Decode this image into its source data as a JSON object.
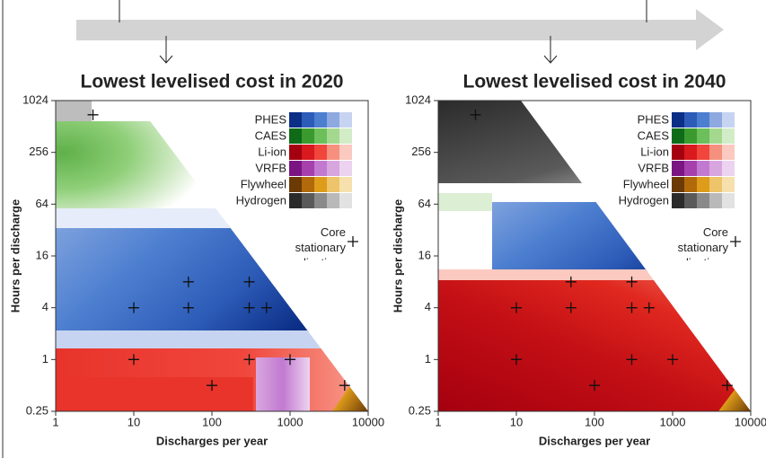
{
  "chart_data": [
    {
      "type": "scatter",
      "title": "Lowest levelised cost in 2020",
      "x_label": "Discharges per year",
      "y_label": "Hours per discharge",
      "x": [
        3,
        10,
        10,
        50,
        50,
        300,
        300,
        500,
        300,
        1000,
        100,
        5000
      ],
      "y": [
        700,
        4,
        1,
        8,
        4,
        8,
        4,
        4,
        1,
        1,
        0.5,
        0.5
      ],
      "xlim": [
        1,
        10000
      ],
      "ylim": [
        0.25,
        1024
      ],
      "log_x": true,
      "log_y": true,
      "xticks": [
        1,
        10,
        100,
        1000,
        10000
      ],
      "yticks": [
        0.25,
        1,
        4,
        16,
        64,
        256,
        1024
      ],
      "annotation": "Core stationary applications",
      "legend_corner": "upper right",
      "legend": [
        {
          "name": "PHES",
          "colors": [
            "#0b2e86",
            "#2d5cb8",
            "#4d7fd0",
            "#8ea9e0",
            "#c7d4f1"
          ]
        },
        {
          "name": "CAES",
          "colors": [
            "#0f6b18",
            "#3a9a2e",
            "#6cbf5a",
            "#a5d88f",
            "#d3ecc8"
          ]
        },
        {
          "name": "Li-ion",
          "colors": [
            "#a5000f",
            "#d8191e",
            "#f0463c",
            "#f5907e",
            "#fbc9bf"
          ]
        },
        {
          "name": "VRFB",
          "colors": [
            "#7a1582",
            "#a540ad",
            "#c27ad0",
            "#d8a6df",
            "#ecd3ef"
          ]
        },
        {
          "name": "Flywheel",
          "colors": [
            "#6b3a05",
            "#b06a0a",
            "#de9c1b",
            "#eec46a",
            "#f6e0ad"
          ]
        },
        {
          "name": "Hydrogen",
          "colors": [
            "#2b2b2b",
            "#5a5a5a",
            "#8a8a8a",
            "#b9b9b9",
            "#e2e2e2"
          ]
        }
      ]
    },
    {
      "type": "scatter",
      "title": "Lowest levelised cost in 2040",
      "x_label": "Discharges per year",
      "y_label": "Hours per discharge",
      "x": [
        3,
        10,
        10,
        50,
        50,
        300,
        300,
        500,
        300,
        1000,
        100,
        5000
      ],
      "y": [
        700,
        4,
        1,
        8,
        4,
        8,
        4,
        4,
        1,
        1,
        0.5,
        0.5
      ],
      "xlim": [
        1,
        10000
      ],
      "ylim": [
        0.25,
        1024
      ],
      "log_x": true,
      "log_y": true,
      "xticks": [
        1,
        10,
        100,
        1000,
        10000
      ],
      "yticks": [
        0.25,
        1,
        4,
        16,
        64,
        256,
        1024
      ],
      "annotation": "Core stationary applications",
      "legend_corner": "upper right",
      "legend": [
        {
          "name": "PHES",
          "colors": [
            "#0b2e86",
            "#2d5cb8",
            "#4d7fd0",
            "#8ea9e0",
            "#c7d4f1"
          ]
        },
        {
          "name": "CAES",
          "colors": [
            "#0f6b18",
            "#3a9a2e",
            "#6cbf5a",
            "#a5d88f",
            "#d3ecc8"
          ]
        },
        {
          "name": "Li-ion",
          "colors": [
            "#a5000f",
            "#d8191e",
            "#f0463c",
            "#f5907e",
            "#fbc9bf"
          ]
        },
        {
          "name": "VRFB",
          "colors": [
            "#7a1582",
            "#a540ad",
            "#c27ad0",
            "#d8a6df",
            "#ecd3ef"
          ]
        },
        {
          "name": "Flywheel",
          "colors": [
            "#6b3a05",
            "#b06a0a",
            "#de9c1b",
            "#eec46a",
            "#f6e0ad"
          ]
        },
        {
          "name": "Hydrogen",
          "colors": [
            "#2b2b2b",
            "#5a5a5a",
            "#8a8a8a",
            "#b9b9b9",
            "#e2e2e2"
          ]
        }
      ]
    }
  ]
}
